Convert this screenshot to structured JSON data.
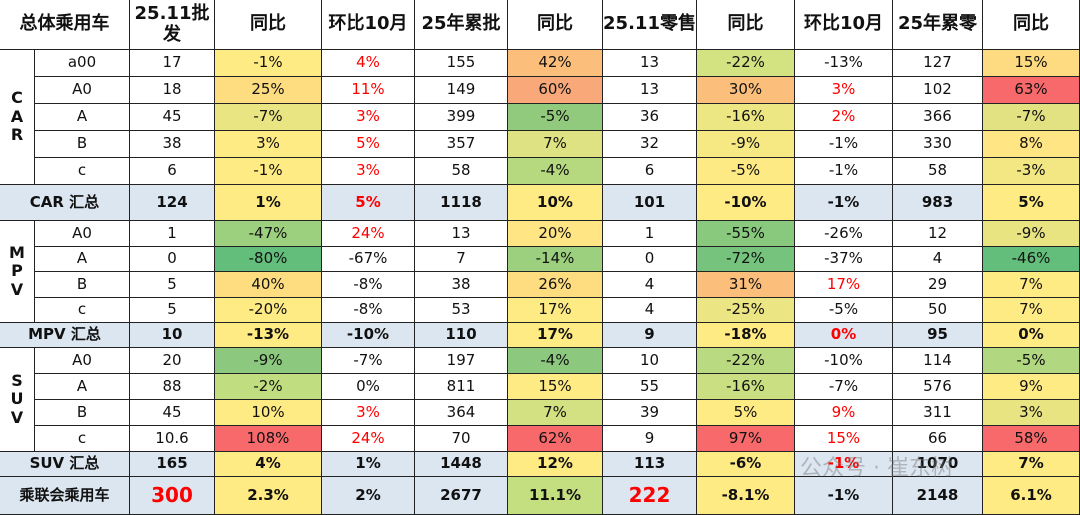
{
  "header": {
    "cells": [
      "总体乘用车",
      "25.11批发",
      "同比",
      "环比10月",
      "25年累批",
      "同比",
      "25.11零售",
      "同比",
      "环比10月",
      "25年累零",
      "同比"
    ]
  },
  "groups": [
    {
      "label": "CAR",
      "rows": [
        {
          "label": "a00",
          "cells": [
            "17",
            "-1%",
            "4%",
            "155",
            "42%",
            "13",
            "-22%",
            "-13%",
            "127",
            "15%"
          ],
          "fills": [
            null,
            "#ffeb84",
            null,
            null,
            "#fcbf7b",
            null,
            "#d3e382",
            null,
            null,
            "#fedb80"
          ],
          "colors": [
            null,
            null,
            "#ff0000",
            null,
            null,
            null,
            null,
            null,
            null,
            null
          ]
        },
        {
          "label": "A0",
          "cells": [
            "18",
            "25%",
            "11%",
            "149",
            "60%",
            "13",
            "30%",
            "3%",
            "102",
            "63%"
          ],
          "fills": [
            null,
            "#fedd81",
            null,
            null,
            "#f9a87a",
            null,
            "#fcbf7b",
            null,
            null,
            "#f8696b"
          ],
          "colors": [
            null,
            null,
            "#ff0000",
            null,
            null,
            null,
            null,
            "#ff0000",
            null,
            null
          ]
        },
        {
          "label": "A",
          "cells": [
            "45",
            "-7%",
            "3%",
            "399",
            "-5%",
            "36",
            "-16%",
            "2%",
            "366",
            "-7%"
          ],
          "fills": [
            null,
            "#eae583",
            null,
            null,
            "#92ca7d",
            null,
            "#ece683",
            null,
            null,
            "#e3e282"
          ],
          "colors": [
            null,
            null,
            "#ff0000",
            null,
            null,
            null,
            null,
            "#ff0000",
            null,
            null
          ]
        },
        {
          "label": "B",
          "cells": [
            "38",
            "3%",
            "5%",
            "357",
            "7%",
            "32",
            "-9%",
            "-1%",
            "330",
            "8%"
          ],
          "fills": [
            null,
            "#ffeb84",
            null,
            null,
            "#dfe283",
            null,
            "#f6e984",
            null,
            null,
            "#ffe583"
          ],
          "colors": [
            null,
            null,
            "#ff0000",
            null,
            null,
            null,
            null,
            null,
            null,
            null
          ]
        },
        {
          "label": "c",
          "cells": [
            "6",
            "-1%",
            "3%",
            "58",
            "-4%",
            "6",
            "-5%",
            "-1%",
            "58",
            "-3%"
          ],
          "fills": [
            null,
            "#ffeb84",
            null,
            null,
            "#b6d97f",
            null,
            "#fdea84",
            null,
            null,
            "#f2e783"
          ],
          "colors": [
            null,
            null,
            "#ff0000",
            null,
            null,
            null,
            null,
            null,
            null,
            null
          ]
        }
      ],
      "total": {
        "label": "CAR 汇总",
        "cells": [
          "124",
          "1%",
          "5%",
          "1118",
          "10%",
          "101",
          "-10%",
          "-1%",
          "983",
          "5%"
        ],
        "fills": [
          null,
          "#ffeb84",
          null,
          null,
          "#ffeb84",
          null,
          "#ffeb84",
          null,
          null,
          "#ffeb84"
        ],
        "colors": [
          null,
          null,
          "#ff0000",
          null,
          null,
          null,
          null,
          null,
          null,
          null
        ]
      }
    },
    {
      "label": "MPV",
      "rows": [
        {
          "label": "A0",
          "cells": [
            "1",
            "-47%",
            "24%",
            "13",
            "20%",
            "1",
            "-55%",
            "-26%",
            "12",
            "-9%"
          ],
          "fills": [
            null,
            "#9ccf7e",
            null,
            null,
            "#ffe583",
            null,
            "#88c97d",
            null,
            null,
            "#e8e482"
          ],
          "colors": [
            null,
            null,
            "#ff0000",
            null,
            null,
            null,
            null,
            null,
            null,
            null
          ]
        },
        {
          "label": "A",
          "cells": [
            "0",
            "-80%",
            "-67%",
            "7",
            "-14%",
            "0",
            "-72%",
            "-37%",
            "4",
            "-46%"
          ],
          "fills": [
            null,
            "#63be7b",
            null,
            null,
            "#9ccf7e",
            null,
            "#75c37c",
            null,
            null,
            "#63be7b"
          ]
        },
        {
          "label": "B",
          "cells": [
            "5",
            "40%",
            "-8%",
            "38",
            "26%",
            "4",
            "31%",
            "17%",
            "29",
            "7%"
          ],
          "fills": [
            null,
            "#fedd81",
            null,
            null,
            "#fedd81",
            null,
            "#fcbf7b",
            null,
            null,
            "#ffeb84"
          ],
          "colors": [
            null,
            null,
            null,
            null,
            null,
            null,
            null,
            "#ff0000",
            null,
            null
          ]
        },
        {
          "label": "c",
          "cells": [
            "5",
            "-20%",
            "-8%",
            "53",
            "17%",
            "4",
            "-25%",
            "-5%",
            "50",
            "7%"
          ],
          "fills": [
            null,
            "#ffeb84",
            null,
            null,
            "#ffeb84",
            null,
            "#ebe583",
            null,
            null,
            "#ffeb84"
          ]
        }
      ],
      "total": {
        "label": "MPV 汇总",
        "cells": [
          "10",
          "-13%",
          "-10%",
          "110",
          "17%",
          "9",
          "-18%",
          "0%",
          "95",
          "0%"
        ],
        "fills": [
          null,
          "#ffeb84",
          null,
          null,
          "#ffeb84",
          null,
          "#ffeb84",
          null,
          null,
          "#ffeb84"
        ],
        "colors": [
          null,
          null,
          null,
          null,
          null,
          null,
          null,
          "#ff0000",
          null,
          null
        ]
      }
    },
    {
      "label": "SUV",
      "rows": [
        {
          "label": "A0",
          "cells": [
            "20",
            "-9%",
            "-7%",
            "197",
            "-4%",
            "10",
            "-22%",
            "-10%",
            "114",
            "-5%"
          ],
          "fills": [
            null,
            "#8cc97e",
            null,
            null,
            "#8cc97e",
            null,
            "#b9da80",
            null,
            null,
            "#b1d780"
          ]
        },
        {
          "label": "A",
          "cells": [
            "88",
            "-2%",
            "0%",
            "811",
            "15%",
            "55",
            "-16%",
            "-7%",
            "576",
            "9%"
          ],
          "fills": [
            null,
            "#c0dd80",
            null,
            null,
            "#ffeb84",
            null,
            "#c9df81",
            null,
            null,
            "#ffeb84"
          ]
        },
        {
          "label": "B",
          "cells": [
            "45",
            "10%",
            "3%",
            "364",
            "7%",
            "39",
            "5%",
            "9%",
            "311",
            "3%"
          ],
          "fills": [
            null,
            "#ffeb84",
            null,
            null,
            "#d4e182",
            null,
            "#ffeb84",
            null,
            null,
            "#e8e482"
          ],
          "colors": [
            null,
            null,
            "#ff0000",
            null,
            null,
            null,
            null,
            "#ff0000",
            null,
            null
          ]
        },
        {
          "label": "c",
          "cells": [
            "10.6",
            "108%",
            "24%",
            "70",
            "62%",
            "9",
            "97%",
            "15%",
            "66",
            "58%"
          ],
          "fills": [
            null,
            "#f8696b",
            null,
            null,
            "#f8696b",
            null,
            "#f8696b",
            null,
            null,
            "#f8696b"
          ],
          "colors": [
            null,
            null,
            "#ff0000",
            null,
            null,
            null,
            null,
            "#ff0000",
            null,
            null
          ]
        }
      ],
      "total": {
        "label": "SUV 汇总",
        "cells": [
          "165",
          "4%",
          "1%",
          "1448",
          "12%",
          "113",
          "-6%",
          "-1%",
          "1070",
          "7%"
        ],
        "fills": [
          null,
          "#ffeb84",
          null,
          null,
          "#ffeb84",
          null,
          "#ffeb84",
          null,
          null,
          "#ffeb84"
        ],
        "colors": [
          null,
          null,
          null,
          null,
          null,
          null,
          null,
          "#ff0000",
          null,
          null
        ]
      }
    }
  ],
  "grand_total": {
    "label": "乘联会乘用车",
    "cells": [
      "300",
      "2.3%",
      "2%",
      "2677",
      "11.1%",
      "222",
      "-8.1%",
      "-1%",
      "2148",
      "6.1%"
    ],
    "fills": [
      null,
      "#ffeb84",
      null,
      null,
      "#c4df80",
      null,
      "#ffeb84",
      null,
      null,
      "#ffeb84"
    ],
    "colors": [
      "#ff0000",
      null,
      null,
      null,
      null,
      "#ff0000",
      null,
      null,
      null,
      null
    ]
  },
  "watermark": "公众号 · 崔东树"
}
